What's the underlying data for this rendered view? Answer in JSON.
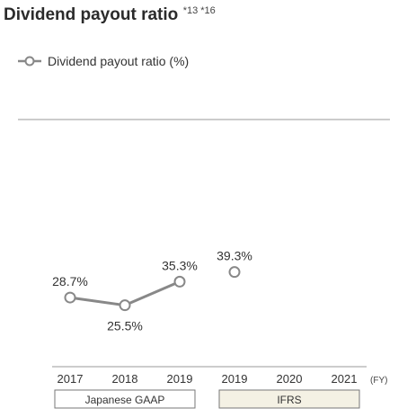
{
  "chart_data": {
    "type": "line",
    "title": "Dividend payout ratio",
    "title_superscript": "*13 *16",
    "categories": [
      "2017",
      "2018",
      "2019",
      "2019",
      "2020",
      "2021"
    ],
    "x_unit": "(FY)",
    "series": [
      {
        "name": "Dividend payout ratio (%)",
        "values": [
          28.7,
          25.5,
          35.3,
          39.3,
          null,
          null
        ],
        "labels": [
          "28.7%",
          "25.5%",
          "35.3%",
          "39.3%",
          "",
          ""
        ],
        "segments": [
          [
            0,
            2
          ],
          [
            3,
            3
          ]
        ]
      }
    ],
    "groups": [
      {
        "label": "Japanese GAAP",
        "from": 0,
        "to": 2,
        "fill": "#ffffff"
      },
      {
        "label": "IFRS",
        "from": 3,
        "to": 5,
        "fill": "#f4f1e4"
      }
    ],
    "ylim": [
      0,
      100
    ],
    "grid": false,
    "legend": "top-left",
    "colors": {
      "line": "#888888",
      "marker_fill": "#ffffff",
      "text": "#333333",
      "rule": "#999999"
    }
  }
}
